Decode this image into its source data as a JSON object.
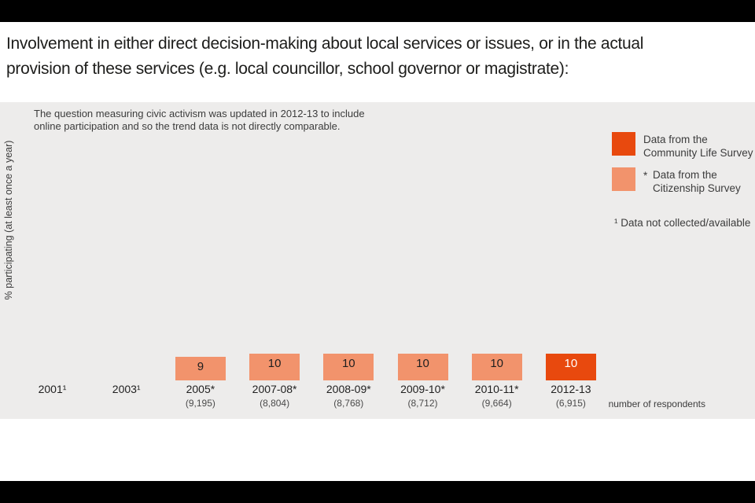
{
  "header": {
    "title_line1": "Involvement in either direct decision-making about local services or issues, or in the actual",
    "title_line2": "provision of these services (e.g. local councillor, school governor or magistrate):"
  },
  "colors": {
    "community_life": "#E8490E",
    "citizenship": "#F2936C",
    "panel_background": "#EDECEB",
    "letterbox": "#000000"
  },
  "legend": {
    "items": [
      {
        "marker": "",
        "label": "Data from the\nCommunity Life Survey",
        "series": "community_life"
      },
      {
        "marker": "*",
        "label": "Data from the\nCitizenship Survey",
        "series": "citizenship"
      }
    ],
    "footnote": "¹ Data not collected/available"
  },
  "chart_data": {
    "type": "bar",
    "title": "Involvement in either direct decision-making about local services or issues, or in the actual provision of these services (e.g. local councillor, school governor or magistrate):",
    "note": "The question measuring civic activism was updated in 2012-13 to include\nonline participation and so the trend data is not directly comparable.",
    "ylabel": "% participating (at least once a year)",
    "xlabel": "",
    "ylim": [
      0,
      100
    ],
    "grid": false,
    "legend_position": "top-right",
    "categories": [
      "2001¹",
      "2003¹",
      "2005*",
      "2007-08*",
      "2008-09*",
      "2009-10*",
      "2010-11*",
      "2012-13"
    ],
    "values": [
      null,
      null,
      9,
      10,
      10,
      10,
      10,
      10
    ],
    "respondents": [
      null,
      null,
      "(9,195)",
      "(8,804)",
      "(8,768)",
      "(8,712)",
      "(9,664)",
      "(6,915)"
    ],
    "series_by_category": [
      "none",
      "none",
      "citizenship",
      "citizenship",
      "citizenship",
      "citizenship",
      "citizenship",
      "community_life"
    ],
    "respondents_caption": "number of respondents"
  }
}
